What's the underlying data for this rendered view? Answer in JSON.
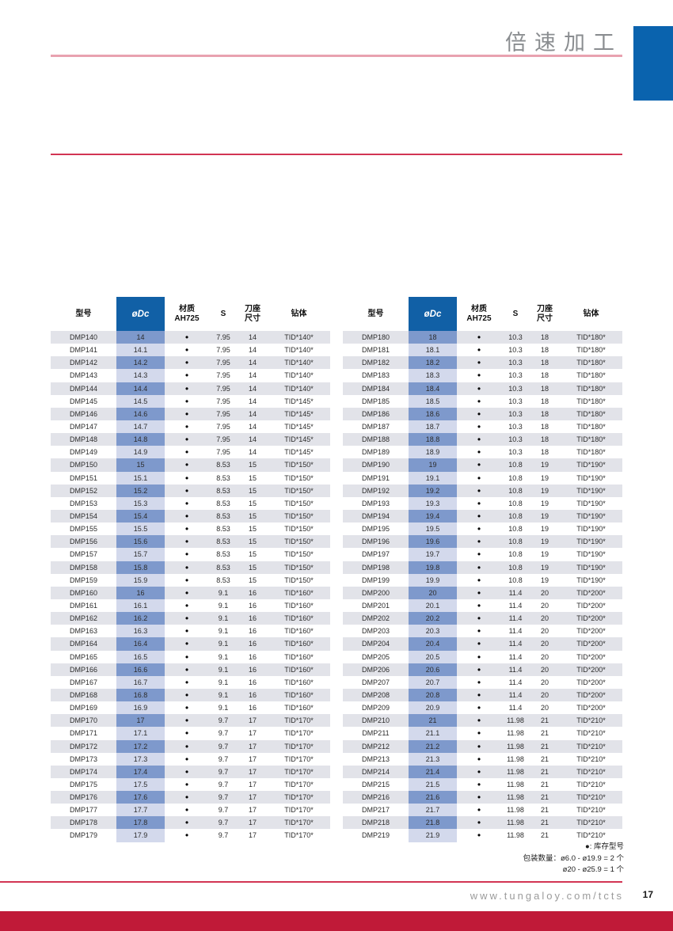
{
  "header": {
    "title": "倍速加工"
  },
  "columns": {
    "model": "型号",
    "dc": "øDc",
    "material_top": "材质",
    "material_bottom": "AH725",
    "s": "S",
    "seat_top": "刀座",
    "seat_bottom": "尺寸",
    "body": "钻体"
  },
  "colors": {
    "header_blue": "#1160a6",
    "stripe_dark": "#7e99cc",
    "stripe_light": "#d3d9ec",
    "row_shade": "#e2e3e9",
    "brand_red": "#c01a38",
    "rule_red": "#d23553",
    "rule_pink": "#e8a2b0",
    "corner_blue": "#0a63ae"
  },
  "tables": [
    {
      "rows": [
        {
          "model": "DMP140",
          "dc": "14",
          "stock": "●",
          "s": "7.95",
          "seat": "14",
          "body": "TID*140*"
        },
        {
          "model": "DMP141",
          "dc": "14.1",
          "stock": "●",
          "s": "7.95",
          "seat": "14",
          "body": "TID*140*"
        },
        {
          "model": "DMP142",
          "dc": "14.2",
          "stock": "●",
          "s": "7.95",
          "seat": "14",
          "body": "TID*140*"
        },
        {
          "model": "DMP143",
          "dc": "14.3",
          "stock": "●",
          "s": "7.95",
          "seat": "14",
          "body": "TID*140*"
        },
        {
          "model": "DMP144",
          "dc": "14.4",
          "stock": "●",
          "s": "7.95",
          "seat": "14",
          "body": "TID*140*"
        },
        {
          "model": "DMP145",
          "dc": "14.5",
          "stock": "●",
          "s": "7.95",
          "seat": "14",
          "body": "TID*145*"
        },
        {
          "model": "DMP146",
          "dc": "14.6",
          "stock": "●",
          "s": "7.95",
          "seat": "14",
          "body": "TID*145*"
        },
        {
          "model": "DMP147",
          "dc": "14.7",
          "stock": "●",
          "s": "7.95",
          "seat": "14",
          "body": "TID*145*"
        },
        {
          "model": "DMP148",
          "dc": "14.8",
          "stock": "●",
          "s": "7.95",
          "seat": "14",
          "body": "TID*145*"
        },
        {
          "model": "DMP149",
          "dc": "14.9",
          "stock": "●",
          "s": "7.95",
          "seat": "14",
          "body": "TID*145*"
        },
        {
          "model": "DMP150",
          "dc": "15",
          "stock": "●",
          "s": "8.53",
          "seat": "15",
          "body": "TID*150*"
        },
        {
          "model": "DMP151",
          "dc": "15.1",
          "stock": "●",
          "s": "8.53",
          "seat": "15",
          "body": "TID*150*"
        },
        {
          "model": "DMP152",
          "dc": "15.2",
          "stock": "●",
          "s": "8.53",
          "seat": "15",
          "body": "TID*150*"
        },
        {
          "model": "DMP153",
          "dc": "15.3",
          "stock": "●",
          "s": "8.53",
          "seat": "15",
          "body": "TID*150*"
        },
        {
          "model": "DMP154",
          "dc": "15.4",
          "stock": "●",
          "s": "8.53",
          "seat": "15",
          "body": "TID*150*"
        },
        {
          "model": "DMP155",
          "dc": "15.5",
          "stock": "●",
          "s": "8.53",
          "seat": "15",
          "body": "TID*150*"
        },
        {
          "model": "DMP156",
          "dc": "15.6",
          "stock": "●",
          "s": "8.53",
          "seat": "15",
          "body": "TID*150*"
        },
        {
          "model": "DMP157",
          "dc": "15.7",
          "stock": "●",
          "s": "8.53",
          "seat": "15",
          "body": "TID*150*"
        },
        {
          "model": "DMP158",
          "dc": "15.8",
          "stock": "●",
          "s": "8.53",
          "seat": "15",
          "body": "TID*150*"
        },
        {
          "model": "DMP159",
          "dc": "15.9",
          "stock": "●",
          "s": "8.53",
          "seat": "15",
          "body": "TID*150*"
        },
        {
          "model": "DMP160",
          "dc": "16",
          "stock": "●",
          "s": "9.1",
          "seat": "16",
          "body": "TID*160*"
        },
        {
          "model": "DMP161",
          "dc": "16.1",
          "stock": "●",
          "s": "9.1",
          "seat": "16",
          "body": "TID*160*"
        },
        {
          "model": "DMP162",
          "dc": "16.2",
          "stock": "●",
          "s": "9.1",
          "seat": "16",
          "body": "TID*160*"
        },
        {
          "model": "DMP163",
          "dc": "16.3",
          "stock": "●",
          "s": "9.1",
          "seat": "16",
          "body": "TID*160*"
        },
        {
          "model": "DMP164",
          "dc": "16.4",
          "stock": "●",
          "s": "9.1",
          "seat": "16",
          "body": "TID*160*"
        },
        {
          "model": "DMP165",
          "dc": "16.5",
          "stock": "●",
          "s": "9.1",
          "seat": "16",
          "body": "TID*160*"
        },
        {
          "model": "DMP166",
          "dc": "16.6",
          "stock": "●",
          "s": "9.1",
          "seat": "16",
          "body": "TID*160*"
        },
        {
          "model": "DMP167",
          "dc": "16.7",
          "stock": "●",
          "s": "9.1",
          "seat": "16",
          "body": "TID*160*"
        },
        {
          "model": "DMP168",
          "dc": "16.8",
          "stock": "●",
          "s": "9.1",
          "seat": "16",
          "body": "TID*160*"
        },
        {
          "model": "DMP169",
          "dc": "16.9",
          "stock": "●",
          "s": "9.1",
          "seat": "16",
          "body": "TID*160*"
        },
        {
          "model": "DMP170",
          "dc": "17",
          "stock": "●",
          "s": "9.7",
          "seat": "17",
          "body": "TID*170*"
        },
        {
          "model": "DMP171",
          "dc": "17.1",
          "stock": "●",
          "s": "9.7",
          "seat": "17",
          "body": "TID*170*"
        },
        {
          "model": "DMP172",
          "dc": "17.2",
          "stock": "●",
          "s": "9.7",
          "seat": "17",
          "body": "TID*170*"
        },
        {
          "model": "DMP173",
          "dc": "17.3",
          "stock": "●",
          "s": "9.7",
          "seat": "17",
          "body": "TID*170*"
        },
        {
          "model": "DMP174",
          "dc": "17.4",
          "stock": "●",
          "s": "9.7",
          "seat": "17",
          "body": "TID*170*"
        },
        {
          "model": "DMP175",
          "dc": "17.5",
          "stock": "●",
          "s": "9.7",
          "seat": "17",
          "body": "TID*170*"
        },
        {
          "model": "DMP176",
          "dc": "17.6",
          "stock": "●",
          "s": "9.7",
          "seat": "17",
          "body": "TID*170*"
        },
        {
          "model": "DMP177",
          "dc": "17.7",
          "stock": "●",
          "s": "9.7",
          "seat": "17",
          "body": "TID*170*"
        },
        {
          "model": "DMP178",
          "dc": "17.8",
          "stock": "●",
          "s": "9.7",
          "seat": "17",
          "body": "TID*170*"
        },
        {
          "model": "DMP179",
          "dc": "17.9",
          "stock": "●",
          "s": "9.7",
          "seat": "17",
          "body": "TID*170*"
        }
      ]
    },
    {
      "rows": [
        {
          "model": "DMP180",
          "dc": "18",
          "stock": "●",
          "s": "10.3",
          "seat": "18",
          "body": "TID*180*"
        },
        {
          "model": "DMP181",
          "dc": "18.1",
          "stock": "●",
          "s": "10.3",
          "seat": "18",
          "body": "TID*180*"
        },
        {
          "model": "DMP182",
          "dc": "18.2",
          "stock": "●",
          "s": "10.3",
          "seat": "18",
          "body": "TID*180*"
        },
        {
          "model": "DMP183",
          "dc": "18.3",
          "stock": "●",
          "s": "10.3",
          "seat": "18",
          "body": "TID*180*"
        },
        {
          "model": "DMP184",
          "dc": "18.4",
          "stock": "●",
          "s": "10.3",
          "seat": "18",
          "body": "TID*180*"
        },
        {
          "model": "DMP185",
          "dc": "18.5",
          "stock": "●",
          "s": "10.3",
          "seat": "18",
          "body": "TID*180*"
        },
        {
          "model": "DMP186",
          "dc": "18.6",
          "stock": "●",
          "s": "10.3",
          "seat": "18",
          "body": "TID*180*"
        },
        {
          "model": "DMP187",
          "dc": "18.7",
          "stock": "●",
          "s": "10.3",
          "seat": "18",
          "body": "TID*180*"
        },
        {
          "model": "DMP188",
          "dc": "18.8",
          "stock": "●",
          "s": "10.3",
          "seat": "18",
          "body": "TID*180*"
        },
        {
          "model": "DMP189",
          "dc": "18.9",
          "stock": "●",
          "s": "10.3",
          "seat": "18",
          "body": "TID*180*"
        },
        {
          "model": "DMP190",
          "dc": "19",
          "stock": "●",
          "s": "10.8",
          "seat": "19",
          "body": "TID*190*"
        },
        {
          "model": "DMP191",
          "dc": "19.1",
          "stock": "●",
          "s": "10.8",
          "seat": "19",
          "body": "TID*190*"
        },
        {
          "model": "DMP192",
          "dc": "19.2",
          "stock": "●",
          "s": "10.8",
          "seat": "19",
          "body": "TID*190*"
        },
        {
          "model": "DMP193",
          "dc": "19.3",
          "stock": "●",
          "s": "10.8",
          "seat": "19",
          "body": "TID*190*"
        },
        {
          "model": "DMP194",
          "dc": "19.4",
          "stock": "●",
          "s": "10.8",
          "seat": "19",
          "body": "TID*190*"
        },
        {
          "model": "DMP195",
          "dc": "19.5",
          "stock": "●",
          "s": "10.8",
          "seat": "19",
          "body": "TID*190*"
        },
        {
          "model": "DMP196",
          "dc": "19.6",
          "stock": "●",
          "s": "10.8",
          "seat": "19",
          "body": "TID*190*"
        },
        {
          "model": "DMP197",
          "dc": "19.7",
          "stock": "●",
          "s": "10.8",
          "seat": "19",
          "body": "TID*190*"
        },
        {
          "model": "DMP198",
          "dc": "19.8",
          "stock": "●",
          "s": "10.8",
          "seat": "19",
          "body": "TID*190*"
        },
        {
          "model": "DMP199",
          "dc": "19.9",
          "stock": "●",
          "s": "10.8",
          "seat": "19",
          "body": "TID*190*"
        },
        {
          "model": "DMP200",
          "dc": "20",
          "stock": "●",
          "s": "11.4",
          "seat": "20",
          "body": "TID*200*"
        },
        {
          "model": "DMP201",
          "dc": "20.1",
          "stock": "●",
          "s": "11.4",
          "seat": "20",
          "body": "TID*200*"
        },
        {
          "model": "DMP202",
          "dc": "20.2",
          "stock": "●",
          "s": "11.4",
          "seat": "20",
          "body": "TID*200*"
        },
        {
          "model": "DMP203",
          "dc": "20.3",
          "stock": "●",
          "s": "11.4",
          "seat": "20",
          "body": "TID*200*"
        },
        {
          "model": "DMP204",
          "dc": "20.4",
          "stock": "●",
          "s": "11.4",
          "seat": "20",
          "body": "TID*200*"
        },
        {
          "model": "DMP205",
          "dc": "20.5",
          "stock": "●",
          "s": "11.4",
          "seat": "20",
          "body": "TID*200*"
        },
        {
          "model": "DMP206",
          "dc": "20.6",
          "stock": "●",
          "s": "11.4",
          "seat": "20",
          "body": "TID*200*"
        },
        {
          "model": "DMP207",
          "dc": "20.7",
          "stock": "●",
          "s": "11.4",
          "seat": "20",
          "body": "TID*200*"
        },
        {
          "model": "DMP208",
          "dc": "20.8",
          "stock": "●",
          "s": "11.4",
          "seat": "20",
          "body": "TID*200*"
        },
        {
          "model": "DMP209",
          "dc": "20.9",
          "stock": "●",
          "s": "11.4",
          "seat": "20",
          "body": "TID*200*"
        },
        {
          "model": "DMP210",
          "dc": "21",
          "stock": "●",
          "s": "11.98",
          "seat": "21",
          "body": "TID*210*"
        },
        {
          "model": "DMP211",
          "dc": "21.1",
          "stock": "●",
          "s": "11.98",
          "seat": "21",
          "body": "TID*210*"
        },
        {
          "model": "DMP212",
          "dc": "21.2",
          "stock": "●",
          "s": "11.98",
          "seat": "21",
          "body": "TID*210*"
        },
        {
          "model": "DMP213",
          "dc": "21.3",
          "stock": "●",
          "s": "11.98",
          "seat": "21",
          "body": "TID*210*"
        },
        {
          "model": "DMP214",
          "dc": "21.4",
          "stock": "●",
          "s": "11.98",
          "seat": "21",
          "body": "TID*210*"
        },
        {
          "model": "DMP215",
          "dc": "21.5",
          "stock": "●",
          "s": "11.98",
          "seat": "21",
          "body": "TID*210*"
        },
        {
          "model": "DMP216",
          "dc": "21.6",
          "stock": "●",
          "s": "11.98",
          "seat": "21",
          "body": "TID*210*"
        },
        {
          "model": "DMP217",
          "dc": "21.7",
          "stock": "●",
          "s": "11.98",
          "seat": "21",
          "body": "TID*210*"
        },
        {
          "model": "DMP218",
          "dc": "21.8",
          "stock": "●",
          "s": "11.98",
          "seat": "21",
          "body": "TID*210*"
        },
        {
          "model": "DMP219",
          "dc": "21.9",
          "stock": "●",
          "s": "11.98",
          "seat": "21",
          "body": "TID*210*"
        }
      ]
    }
  ],
  "footnotes": {
    "stock_note": "●: 库存型号",
    "packing_note_line1": "包装数量：ø6.0 - ø19.9 = 2 个",
    "packing_note_line2": "ø20 - ø25.9 = 1 个"
  },
  "footer": {
    "url": "www.tungaloy.com/tcts",
    "page_number": "17"
  }
}
